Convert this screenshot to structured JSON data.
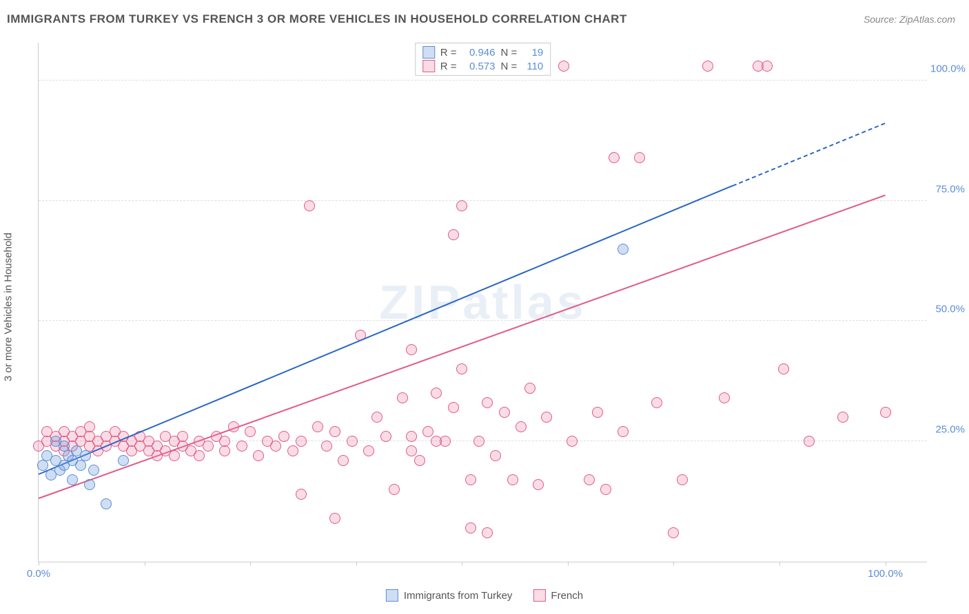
{
  "title": "IMMIGRANTS FROM TURKEY VS FRENCH 3 OR MORE VEHICLES IN HOUSEHOLD CORRELATION CHART",
  "source": "Source: ZipAtlas.com",
  "watermark": "ZIPatlas",
  "chart": {
    "type": "scatter",
    "y_axis_title": "3 or more Vehicles in Household",
    "xlim": [
      0,
      105
    ],
    "ylim": [
      0,
      108
    ],
    "x_ticks": [
      0,
      12.5,
      25,
      37.5,
      50,
      62.5,
      75,
      87.5,
      100
    ],
    "x_tick_labels": {
      "0": "0.0%",
      "100": "100.0%"
    },
    "y_gridlines": [
      25,
      50,
      75,
      100
    ],
    "y_tick_labels": {
      "25": "25.0%",
      "50": "50.0%",
      "75": "75.0%",
      "100": "100.0%"
    },
    "background_color": "#ffffff",
    "grid_color": "#dddddd",
    "axis_color": "#cccccc",
    "tick_label_color": "#5b8dd6",
    "title_color": "#555555",
    "marker_radius": 8,
    "series": [
      {
        "name": "Immigrants from Turkey",
        "color_fill": "rgba(120,160,220,0.35)",
        "color_stroke": "#5b8dd6",
        "R": "0.946",
        "N": "19",
        "trend": {
          "x1": 0,
          "y1": 18,
          "x2": 82,
          "y2": 78,
          "dash_to_x": 100,
          "dash_to_y": 91,
          "color": "#2a66c4",
          "width": 2
        },
        "points": [
          [
            0.5,
            20
          ],
          [
            1,
            22
          ],
          [
            1.5,
            18
          ],
          [
            2,
            21
          ],
          [
            2,
            25
          ],
          [
            2.5,
            19
          ],
          [
            3,
            24
          ],
          [
            3,
            20
          ],
          [
            3.5,
            22
          ],
          [
            4,
            21
          ],
          [
            4,
            17
          ],
          [
            4.5,
            23
          ],
          [
            5,
            20
          ],
          [
            5.5,
            22
          ],
          [
            6,
            16
          ],
          [
            6.5,
            19
          ],
          [
            8,
            12
          ],
          [
            10,
            21
          ],
          [
            69,
            65
          ]
        ]
      },
      {
        "name": "French",
        "color_fill": "rgba(240,140,170,0.30)",
        "color_stroke": "#e05a87",
        "R": "0.573",
        "N": "110",
        "trend": {
          "x1": 0,
          "y1": 13,
          "x2": 100,
          "y2": 76,
          "color": "#e05a87",
          "width": 2
        },
        "points": [
          [
            0,
            24
          ],
          [
            1,
            25
          ],
          [
            1,
            27
          ],
          [
            2,
            24
          ],
          [
            2,
            26
          ],
          [
            3,
            25
          ],
          [
            3,
            27
          ],
          [
            3,
            23
          ],
          [
            4,
            26
          ],
          [
            4,
            24
          ],
          [
            5,
            25
          ],
          [
            5,
            27
          ],
          [
            6,
            24
          ],
          [
            6,
            26
          ],
          [
            6,
            28
          ],
          [
            7,
            25
          ],
          [
            7,
            23
          ],
          [
            8,
            26
          ],
          [
            8,
            24
          ],
          [
            9,
            27
          ],
          [
            9,
            25
          ],
          [
            10,
            24
          ],
          [
            10,
            26
          ],
          [
            11,
            23
          ],
          [
            11,
            25
          ],
          [
            12,
            26
          ],
          [
            12,
            24
          ],
          [
            13,
            25
          ],
          [
            13,
            23
          ],
          [
            14,
            22
          ],
          [
            14,
            24
          ],
          [
            15,
            26
          ],
          [
            15,
            23
          ],
          [
            16,
            25
          ],
          [
            16,
            22
          ],
          [
            17,
            24
          ],
          [
            17,
            26
          ],
          [
            18,
            23
          ],
          [
            19,
            22
          ],
          [
            19,
            25
          ],
          [
            20,
            24
          ],
          [
            21,
            26
          ],
          [
            22,
            23
          ],
          [
            22,
            25
          ],
          [
            23,
            28
          ],
          [
            24,
            24
          ],
          [
            25,
            27
          ],
          [
            26,
            22
          ],
          [
            27,
            25
          ],
          [
            28,
            24
          ],
          [
            29,
            26
          ],
          [
            30,
            23
          ],
          [
            31,
            25
          ],
          [
            31,
            14
          ],
          [
            32,
            74
          ],
          [
            33,
            28
          ],
          [
            34,
            24
          ],
          [
            35,
            27
          ],
          [
            35,
            9
          ],
          [
            36,
            21
          ],
          [
            37,
            25
          ],
          [
            38,
            47
          ],
          [
            39,
            23
          ],
          [
            40,
            30
          ],
          [
            41,
            26
          ],
          [
            42,
            15
          ],
          [
            43,
            34
          ],
          [
            44,
            23
          ],
          [
            44,
            44
          ],
          [
            45,
            21
          ],
          [
            46,
            27
          ],
          [
            47,
            35
          ],
          [
            48,
            25
          ],
          [
            49,
            32
          ],
          [
            49,
            68
          ],
          [
            50,
            74
          ],
          [
            50,
            40
          ],
          [
            51,
            17
          ],
          [
            52,
            25
          ],
          [
            53,
            33
          ],
          [
            53,
            6
          ],
          [
            54,
            22
          ],
          [
            55,
            31
          ],
          [
            56,
            17
          ],
          [
            57,
            28
          ],
          [
            58,
            36
          ],
          [
            59,
            16
          ],
          [
            60,
            30
          ],
          [
            62,
            103
          ],
          [
            63,
            25
          ],
          [
            65,
            17
          ],
          [
            66,
            31
          ],
          [
            67,
            15
          ],
          [
            68,
            84
          ],
          [
            69,
            27
          ],
          [
            71,
            84
          ],
          [
            73,
            33
          ],
          [
            75,
            6
          ],
          [
            76,
            17
          ],
          [
            79,
            103
          ],
          [
            81,
            34
          ],
          [
            85,
            103
          ],
          [
            86,
            103
          ],
          [
            88,
            40
          ],
          [
            91,
            25
          ],
          [
            95,
            30
          ],
          [
            100,
            31
          ],
          [
            51,
            7
          ],
          [
            47,
            25
          ],
          [
            44,
            26
          ]
        ]
      }
    ]
  },
  "legend_top": {
    "r_label": "R =",
    "n_label": "N ="
  },
  "legend_bottom": {
    "items": [
      "Immigrants from Turkey",
      "French"
    ]
  }
}
